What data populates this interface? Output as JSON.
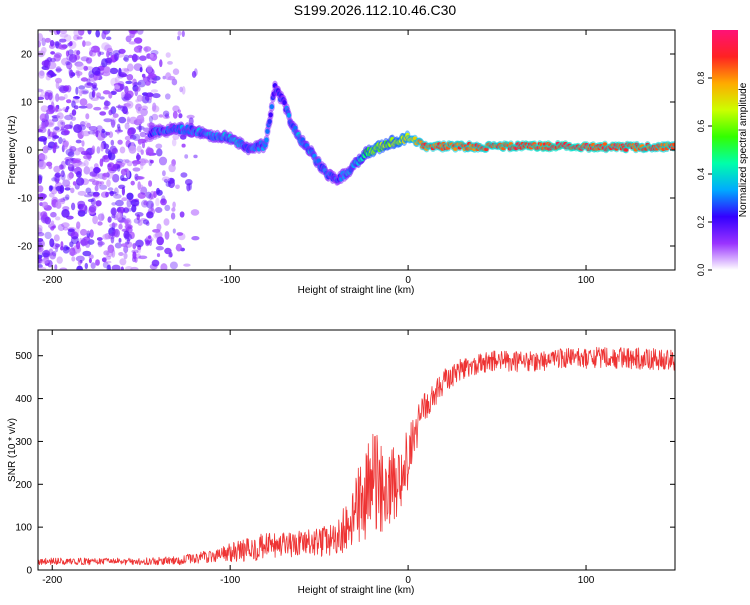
{
  "title": "S199.2026.112.10.46.C30",
  "chart_data": [
    {
      "type": "heatmap",
      "xlabel": "Height of straight line (km)",
      "ylabel": "Frequency (Hz)",
      "xlim": [
        -208,
        150
      ],
      "ylim": [
        -25,
        25
      ],
      "xticks": [
        -200,
        -100,
        0,
        100
      ],
      "xtick_labels": [
        "-200",
        "-100",
        "0",
        "100"
      ],
      "yticks": [
        -20,
        -10,
        0,
        10,
        20
      ],
      "ytick_labels": [
        "-20",
        "-10",
        "0",
        "10",
        "20"
      ],
      "colorbar": {
        "label": "Normalized spectral amplitude",
        "range": [
          0,
          1
        ],
        "ticks": [
          0.0,
          0.2,
          0.4,
          0.6,
          0.8
        ],
        "tick_labels": [
          "0.0",
          "0.2",
          "0.4",
          "0.6",
          "0.8"
        ],
        "colors": [
          "#ffffff",
          "#9933ff",
          "#3300ff",
          "#00aaff",
          "#00ffaa",
          "#33ff00",
          "#ccff00",
          "#ffaa00",
          "#ff2222",
          "#ff1177"
        ]
      },
      "ridge": {
        "description": "dominant frequency vs height",
        "x": [
          -145,
          -130,
          -120,
          -110,
          -100,
          -90,
          -80,
          -75,
          -70,
          -65,
          -60,
          -55,
          -50,
          -45,
          -40,
          -35,
          -30,
          -25,
          -20,
          -10,
          0,
          10,
          40,
          80,
          120,
          150
        ],
        "y": [
          3.5,
          4.5,
          4,
          3,
          2.5,
          0.5,
          1,
          13,
          10,
          5,
          2,
          0,
          -3,
          -5,
          -6,
          -5,
          -3,
          -1,
          0,
          1.5,
          2.5,
          0.8,
          0.7,
          0.8,
          0.6,
          0.7
        ],
        "amplitude": [
          0.25,
          0.3,
          0.3,
          0.3,
          0.32,
          0.3,
          0.3,
          0.22,
          0.25,
          0.3,
          0.32,
          0.32,
          0.3,
          0.3,
          0.25,
          0.3,
          0.35,
          0.45,
          0.65,
          0.6,
          0.7,
          0.85,
          0.85,
          0.9,
          0.88,
          0.85
        ]
      },
      "noise_region": {
        "x_range": [
          -208,
          -115
        ],
        "amplitude_range": [
          0.05,
          0.2
        ]
      }
    },
    {
      "type": "line",
      "xlabel": "Height of straight line (km)",
      "ylabel": "SNR (10 * v/v)",
      "xlim": [
        -208,
        150
      ],
      "ylim": [
        0,
        560
      ],
      "xticks": [
        -200,
        -100,
        0,
        100
      ],
      "xtick_labels": [
        "-200",
        "-100",
        "0",
        "100"
      ],
      "yticks": [
        0,
        100,
        200,
        300,
        400,
        500
      ],
      "ytick_labels": [
        "0",
        "100",
        "200",
        "300",
        "400",
        "500"
      ],
      "series": [
        {
          "name": "SNR",
          "color": "#ee3333",
          "x": [
            -208,
            -180,
            -150,
            -130,
            -115,
            -100,
            -90,
            -80,
            -70,
            -60,
            -50,
            -40,
            -35,
            -30,
            -25,
            -20,
            -15,
            -10,
            -5,
            0,
            5,
            10,
            15,
            20,
            30,
            40,
            50,
            60,
            80,
            100,
            120,
            150
          ],
          "values": [
            20,
            20,
            20,
            22,
            30,
            40,
            48,
            55,
            55,
            60,
            65,
            70,
            100,
            130,
            170,
            200,
            190,
            200,
            210,
            260,
            330,
            380,
            410,
            440,
            470,
            480,
            490,
            485,
            490,
            495,
            495,
            490
          ],
          "noise_amplitude": [
            8,
            8,
            8,
            10,
            15,
            22,
            28,
            32,
            32,
            32,
            35,
            40,
            60,
            80,
            110,
            130,
            110,
            90,
            80,
            70,
            55,
            40,
            30,
            28,
            25,
            25,
            25,
            25,
            25,
            25,
            25,
            25
          ]
        }
      ]
    }
  ]
}
